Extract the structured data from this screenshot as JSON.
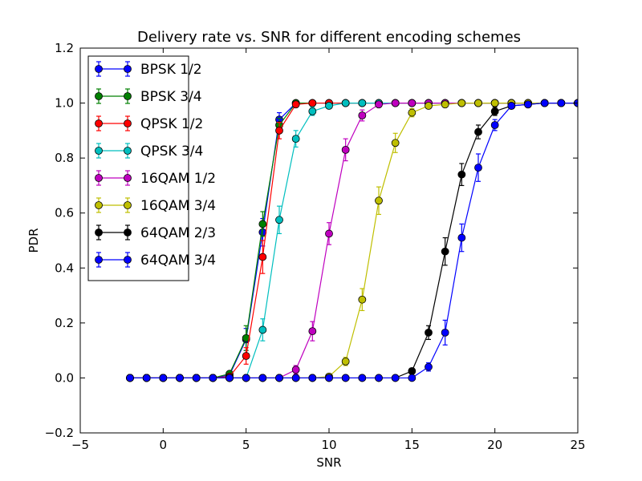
{
  "chart_data": {
    "type": "line",
    "title": "Delivery rate vs. SNR for different encoding schemes",
    "xlabel": "SNR",
    "ylabel": "PDR",
    "xlim": [
      -5,
      25
    ],
    "ylim": [
      -0.2,
      1.2
    ],
    "xticks": [
      -5,
      0,
      5,
      10,
      15,
      20,
      25
    ],
    "yticks": [
      -0.2,
      0.0,
      0.2,
      0.4,
      0.6,
      0.8,
      1.0,
      1.2
    ],
    "xtick_labels": [
      "−5",
      "0",
      "5",
      "10",
      "15",
      "20",
      "25"
    ],
    "ytick_labels": [
      "−0.2",
      "0.0",
      "0.2",
      "0.4",
      "0.6",
      "0.8",
      "1.0",
      "1.2"
    ],
    "grid": false,
    "legend_position": "top-left",
    "x": [
      -2,
      -1,
      0,
      1,
      2,
      3,
      4,
      5,
      6,
      7,
      8,
      9,
      10,
      11,
      12,
      13,
      14,
      15,
      16,
      17,
      18,
      19,
      20,
      21,
      22,
      23,
      24,
      25
    ],
    "series": [
      {
        "name": "BPSK 1/2",
        "color": "#0000ff",
        "values": [
          0,
          0,
          0,
          0,
          0,
          0,
          0.01,
          0.14,
          0.53,
          0.94,
          1,
          1,
          1,
          1,
          1,
          1,
          1,
          1,
          1,
          1,
          1,
          1,
          1,
          1,
          1,
          1,
          1,
          1
        ],
        "errors": [
          0,
          0,
          0,
          0,
          0,
          0,
          0.005,
          0.04,
          0.05,
          0.025,
          0,
          0,
          0,
          0,
          0,
          0,
          0,
          0,
          0,
          0,
          0,
          0,
          0,
          0,
          0,
          0,
          0,
          0
        ]
      },
      {
        "name": "BPSK 3/4",
        "color": "#008000",
        "values": [
          0,
          0,
          0,
          0,
          0,
          0,
          0.015,
          0.145,
          0.56,
          0.92,
          1,
          1,
          1,
          1,
          1,
          1,
          1,
          1,
          1,
          1,
          1,
          1,
          1,
          1,
          1,
          1,
          1,
          1
        ],
        "errors": [
          0,
          0,
          0,
          0,
          0,
          0,
          0.005,
          0.045,
          0.045,
          0.025,
          0,
          0,
          0,
          0,
          0,
          0,
          0,
          0,
          0,
          0,
          0,
          0,
          0,
          0,
          0,
          0,
          0,
          0
        ]
      },
      {
        "name": "QPSK 1/2",
        "color": "#ff0000",
        "values": [
          0,
          0,
          0,
          0,
          0,
          0,
          0.005,
          0.08,
          0.44,
          0.9,
          0.995,
          1,
          1,
          1,
          1,
          1,
          1,
          1,
          1,
          1,
          1,
          1,
          1,
          1,
          1,
          1,
          1,
          1
        ],
        "errors": [
          0,
          0,
          0,
          0,
          0,
          0,
          0.003,
          0.03,
          0.06,
          0.03,
          0.005,
          0,
          0,
          0,
          0,
          0,
          0,
          0,
          0,
          0,
          0,
          0,
          0,
          0,
          0,
          0,
          0,
          0
        ]
      },
      {
        "name": "QPSK 3/4",
        "color": "#00bfbf",
        "values": [
          0,
          0,
          0,
          0,
          0,
          0,
          0,
          0,
          0.175,
          0.575,
          0.87,
          0.97,
          0.99,
          1,
          1,
          1,
          1,
          1,
          1,
          1,
          1,
          1,
          1,
          1,
          1,
          1,
          1,
          1
        ],
        "errors": [
          0,
          0,
          0,
          0,
          0,
          0,
          0,
          0,
          0.04,
          0.05,
          0.03,
          0.015,
          0.005,
          0,
          0,
          0,
          0,
          0,
          0,
          0,
          0,
          0,
          0,
          0,
          0,
          0,
          0,
          0
        ]
      },
      {
        "name": "16QAM 1/2",
        "color": "#bf00bf",
        "values": [
          0,
          0,
          0,
          0,
          0,
          0,
          0,
          0,
          0,
          0,
          0.03,
          0.17,
          0.525,
          0.83,
          0.955,
          0.995,
          1,
          1,
          1,
          1,
          1,
          1,
          1,
          1,
          1,
          1,
          1,
          1
        ],
        "errors": [
          0,
          0,
          0,
          0,
          0,
          0,
          0,
          0,
          0,
          0,
          0.015,
          0.035,
          0.04,
          0.04,
          0.02,
          0.005,
          0,
          0,
          0,
          0,
          0,
          0,
          0,
          0,
          0,
          0,
          0,
          0
        ]
      },
      {
        "name": "16QAM 3/4",
        "color": "#bfbf00",
        "values": [
          0,
          0,
          0,
          0,
          0,
          0,
          0,
          0,
          0,
          0,
          0,
          0,
          0.005,
          0.06,
          0.285,
          0.645,
          0.855,
          0.965,
          0.99,
          0.995,
          1,
          1,
          1,
          1,
          1,
          1,
          1,
          1
        ],
        "errors": [
          0,
          0,
          0,
          0,
          0,
          0,
          0,
          0,
          0,
          0,
          0,
          0,
          0.003,
          0.015,
          0.04,
          0.05,
          0.035,
          0.015,
          0.005,
          0.003,
          0,
          0,
          0,
          0,
          0,
          0,
          0,
          0
        ]
      },
      {
        "name": "64QAM 2/3",
        "color": "#000000",
        "values": [
          0,
          0,
          0,
          0,
          0,
          0,
          0,
          0,
          0,
          0,
          0,
          0,
          0,
          0,
          0,
          0,
          0,
          0.025,
          0.165,
          0.46,
          0.74,
          0.895,
          0.97,
          0.99,
          0.995,
          1,
          1,
          1
        ],
        "errors": [
          0,
          0,
          0,
          0,
          0,
          0,
          0,
          0,
          0,
          0,
          0,
          0,
          0,
          0,
          0,
          0,
          0,
          0.01,
          0.025,
          0.05,
          0.04,
          0.025,
          0.015,
          0.005,
          0.003,
          0,
          0,
          0
        ]
      },
      {
        "name": "64QAM 3/4",
        "color": "#0000ff",
        "values": [
          0,
          0,
          0,
          0,
          0,
          0,
          0,
          0,
          0,
          0,
          0,
          0,
          0,
          0,
          0,
          0,
          0,
          0,
          0.04,
          0.165,
          0.51,
          0.765,
          0.92,
          0.99,
          0.995,
          1,
          1,
          1
        ],
        "errors": [
          0,
          0,
          0,
          0,
          0,
          0,
          0,
          0,
          0,
          0,
          0,
          0,
          0,
          0,
          0,
          0,
          0,
          0,
          0.015,
          0.045,
          0.05,
          0.05,
          0.02,
          0.01,
          0.005,
          0,
          0,
          0
        ]
      }
    ]
  }
}
